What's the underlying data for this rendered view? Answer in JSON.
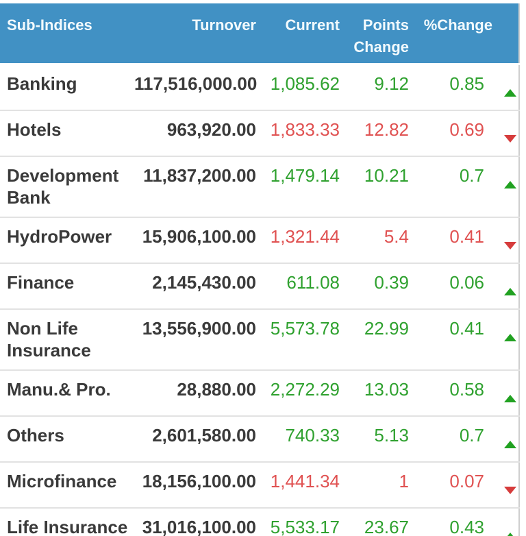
{
  "colors": {
    "header_bg": "#4191c4",
    "header_text": "#f2fafd",
    "gain": "#2fa12f",
    "loss": "#e05252",
    "arrow_gain": "#21a121",
    "arrow_loss": "#d63c3c",
    "text_dark": "#3a3a3a",
    "row_divider": "#e2e2e2",
    "table_border": "#cfcfcf",
    "row_bg": "#ffffff"
  },
  "table": {
    "columns": [
      {
        "label": "Sub-Indices"
      },
      {
        "label": "Turnover"
      },
      {
        "label": "Current"
      },
      {
        "label": "Points Change"
      },
      {
        "label": "%Change"
      }
    ],
    "rows": [
      {
        "name": "Banking",
        "turnover": "117,516,000.00",
        "current": "1,085.62",
        "points_change": "9.12",
        "percent_change": "0.85",
        "trend": "up"
      },
      {
        "name": "Hotels",
        "turnover": "963,920.00",
        "current": "1,833.33",
        "points_change": "12.82",
        "percent_change": "0.69",
        "trend": "down"
      },
      {
        "name": "Development Bank",
        "turnover": "11,837,200.00",
        "current": "1,479.14",
        "points_change": "10.21",
        "percent_change": "0.7",
        "trend": "up"
      },
      {
        "name": "HydroPower",
        "turnover": "15,906,100.00",
        "current": "1,321.44",
        "points_change": "5.4",
        "percent_change": "0.41",
        "trend": "down"
      },
      {
        "name": "Finance",
        "turnover": "2,145,430.00",
        "current": "611.08",
        "points_change": "0.39",
        "percent_change": "0.06",
        "trend": "up"
      },
      {
        "name": "Non Life Insurance",
        "turnover": "13,556,900.00",
        "current": "5,573.78",
        "points_change": "22.99",
        "percent_change": "0.41",
        "trend": "up"
      },
      {
        "name": "Manu.& Pro.",
        "turnover": "28,880.00",
        "current": "2,272.29",
        "points_change": "13.03",
        "percent_change": "0.58",
        "trend": "up"
      },
      {
        "name": "Others",
        "turnover": "2,601,580.00",
        "current": "740.33",
        "points_change": "5.13",
        "percent_change": "0.7",
        "trend": "up"
      },
      {
        "name": "Microfinance",
        "turnover": "18,156,100.00",
        "current": "1,441.34",
        "points_change": "1",
        "percent_change": "0.07",
        "trend": "down"
      },
      {
        "name": "Life Insurance",
        "turnover": "31,016,100.00",
        "current": "5,533.17",
        "points_change": "23.67",
        "percent_change": "0.43",
        "trend": "up"
      }
    ]
  }
}
